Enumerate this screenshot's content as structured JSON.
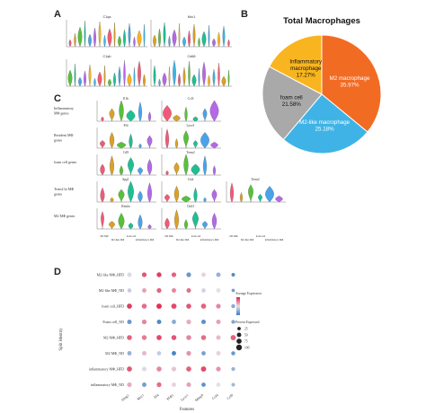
{
  "panels": {
    "A": "A",
    "B": "B",
    "C": "C",
    "D": "D"
  },
  "colors": {
    "m2": "#f26b23",
    "m2like": "#3fb3e6",
    "foam": "#a9a9a9",
    "inflam": "#f8b51f",
    "pink": "#f05a78",
    "orange": "#d9a12a",
    "green": "#58c03b",
    "teal": "#1fbf93",
    "blue": "#4aa3e8",
    "purple": "#b469e6",
    "dot_low": "#3b7ec0",
    "dot_high": "#e0244b"
  },
  "panel_a": {
    "genes": [
      "C1qa",
      "Mrc1",
      "C1qb",
      "Cd68"
    ]
  },
  "panel_c": {
    "rows": [
      {
        "label": "Inflammatory\nMΦ genes",
        "genes": [
          "Il1b",
          "Ccl3"
        ]
      },
      {
        "label": "Resident MΦ\ngenes",
        "genes": [
          "Pf4",
          "Lyve1"
        ]
      },
      {
        "label": "foam cell genes",
        "genes": [
          "Cd9",
          "Trem2"
        ]
      },
      {
        "label": "Trem2 hi MΦ\ngenes",
        "genes": [
          "Spp1",
          "Ctsd",
          "Trem2"
        ]
      },
      {
        "label": "M2 MΦ genes",
        "genes": [
          "Retnla",
          "Chil3"
        ]
      }
    ],
    "x_categories": [
      "M2 MΦ",
      "M2-like MΦ",
      "foam cell",
      "inflammatory MΦ"
    ]
  },
  "chart_data": [
    {
      "type": "pie",
      "title": "Total Macrophages",
      "slices": [
        {
          "label": "M2 macrophage",
          "pct": "35.97%",
          "value": 35.97,
          "color": "#f26b23"
        },
        {
          "label": "M2-like macrophage",
          "pct": "25.18%",
          "value": 25.18,
          "color": "#3fb3e6"
        },
        {
          "label": "foam cell",
          "pct": "21.58%",
          "value": 21.58,
          "color": "#a9a9a9"
        },
        {
          "label": "Inflammatory macrophage",
          "pct": "17.27%",
          "value": 17.27,
          "color": "#f8b51f"
        }
      ]
    },
    {
      "type": "scatter",
      "subtype": "dotplot",
      "xlabel": "Features",
      "ylabel": "Split Identity",
      "x": [
        "Ahsg1",
        "Mrc1",
        "Pf4",
        "Pf4l1",
        "Lyve1",
        "Mmp9",
        "Ccl4",
        "Ccl9"
      ],
      "y": [
        "M2-like MΦ_HFD",
        "M2-like MΦ_ND",
        "foam cell_HFD",
        "Foam cell_ND",
        "M2 MΦ_HFD",
        "M2 MΦ_ND",
        "inflammatory MΦ_HFD",
        "inflammatory MΦ_ND"
      ],
      "legend_expression": {
        "title": "Average Expression",
        "range": [
          -1,
          2
        ]
      },
      "legend_percent": {
        "title": "Percent Expressed",
        "values": [
          "25",
          "50",
          "75",
          "100"
        ]
      },
      "legend_placement": "right",
      "expression": [
        [
          0.4,
          1.6,
          1.8,
          1.5,
          -0.6,
          0.6,
          -0.2,
          -0.8
        ],
        [
          0.2,
          1.0,
          1.5,
          1.2,
          1.4,
          0.3,
          0.5,
          -0.5
        ],
        [
          1.8,
          1.4,
          1.9,
          1.7,
          1.6,
          1.5,
          1.2,
          -0.3
        ],
        [
          -0.6,
          1.2,
          -0.8,
          -0.3,
          0.9,
          -0.7,
          1.0,
          -0.4
        ],
        [
          1.5,
          1.3,
          1.7,
          1.6,
          1.2,
          1.4,
          0.8,
          1.5
        ],
        [
          -0.2,
          0.8,
          0.2,
          -0.9,
          1.1,
          -0.5,
          0.6,
          -0.6
        ],
        [
          1.6,
          0.4,
          1.2,
          0.7,
          1.5,
          1.7,
          1.1,
          -0.2
        ],
        [
          0.9,
          -0.5,
          1.4,
          0.6,
          1.0,
          -0.7,
          0.5,
          -0.1
        ]
      ],
      "percent": [
        [
          55,
          60,
          65,
          60,
          60,
          50,
          55,
          30
        ],
        [
          40,
          50,
          60,
          55,
          55,
          45,
          50,
          25
        ],
        [
          75,
          70,
          80,
          80,
          70,
          75,
          60,
          40
        ],
        [
          55,
          60,
          55,
          50,
          60,
          55,
          55,
          35
        ],
        [
          70,
          65,
          75,
          70,
          70,
          70,
          55,
          80
        ],
        [
          50,
          55,
          45,
          50,
          60,
          45,
          50,
          40
        ],
        [
          75,
          55,
          70,
          60,
          75,
          80,
          60,
          35
        ],
        [
          60,
          50,
          65,
          50,
          55,
          45,
          45,
          30
        ]
      ]
    }
  ]
}
